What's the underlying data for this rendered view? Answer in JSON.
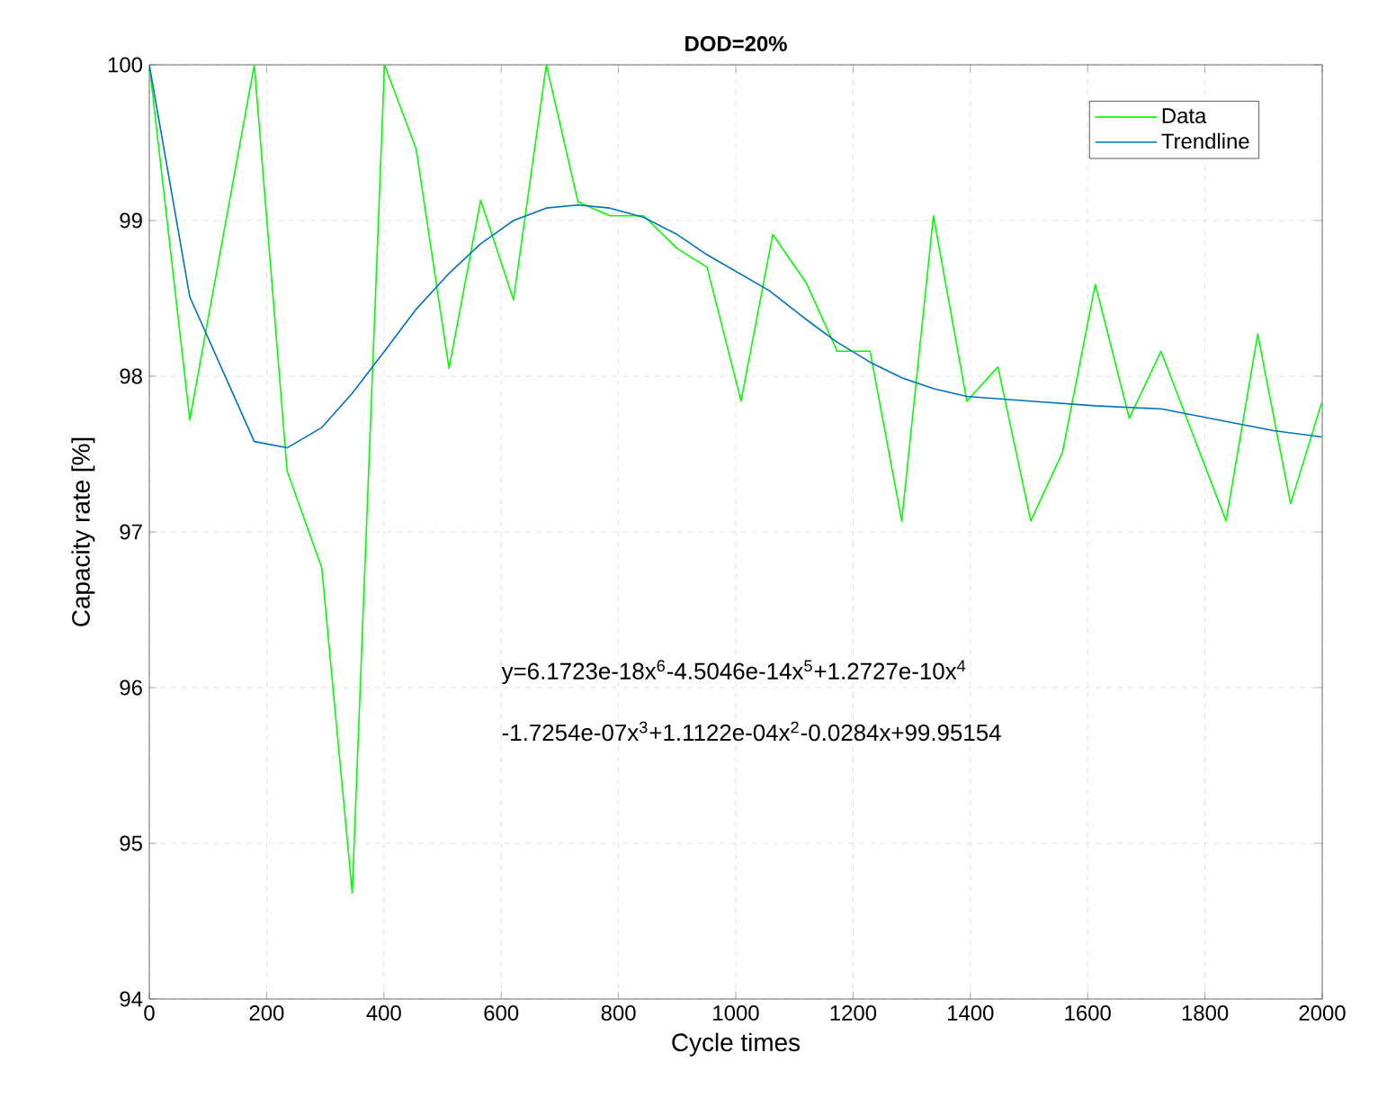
{
  "chart_data": {
    "type": "line",
    "title": "DOD=20%",
    "xlabel": "Cycle times",
    "ylabel": "Capacity rate [%]",
    "xlim": [
      0,
      2000
    ],
    "ylim": [
      94,
      100
    ],
    "xticks": [
      0,
      200,
      400,
      600,
      800,
      1000,
      1200,
      1400,
      1600,
      1800,
      2000
    ],
    "yticks": [
      94,
      95,
      96,
      97,
      98,
      99,
      100
    ],
    "grid": true,
    "legend": "top right",
    "marker": "none",
    "line_style": "solid",
    "series": [
      {
        "name": "Data",
        "color": "#00ff00",
        "x": [
          0,
          69,
          179,
          235,
          294,
          346,
          401,
          455,
          511,
          565,
          621,
          677,
          731,
          785,
          843,
          900,
          951,
          1009,
          1063,
          1120,
          1173,
          1229,
          1283,
          1337,
          1394,
          1447,
          1503,
          1557,
          1613,
          1671,
          1725,
          1836,
          1890,
          1946,
          1999
        ],
        "values": [
          100,
          97.72,
          100,
          97.39,
          96.77,
          94.68,
          100,
          99.46,
          98.05,
          99.13,
          98.49,
          100,
          99.12,
          99.03,
          99.03,
          98.82,
          98.7,
          97.84,
          98.91,
          98.6,
          98.16,
          98.16,
          97.07,
          99.03,
          97.84,
          98.06,
          97.07,
          97.51,
          98.59,
          97.73,
          98.16,
          97.07,
          98.27,
          97.18,
          97.83
        ]
      },
      {
        "name": "Trendline",
        "color": "#0072bd",
        "x": [
          0,
          69,
          179,
          235,
          294,
          346,
          401,
          455,
          511,
          565,
          621,
          677,
          731,
          785,
          843,
          900,
          951,
          1057,
          1118,
          1172,
          1229,
          1283,
          1337,
          1394,
          1503,
          1613,
          1725,
          1836,
          1917,
          1999
        ],
        "values": [
          100,
          98.51,
          97.58,
          97.54,
          97.67,
          97.89,
          98.16,
          98.43,
          98.66,
          98.85,
          99.0,
          99.08,
          99.1,
          99.08,
          99.02,
          98.91,
          98.78,
          98.55,
          98.37,
          98.22,
          98.09,
          97.99,
          97.92,
          97.87,
          97.84,
          97.81,
          97.79,
          97.71,
          97.65,
          97.61
        ]
      }
    ],
    "annotations": [
      "y=6.1723e-18x$^{6}$-4.5046e-14x$^{5}$+1.2727e-10x$^{4}$",
      "-1.7254e-07x$^{3}$+1.1122e-04x$^{2}$-0.0284x+99.95154"
    ]
  }
}
